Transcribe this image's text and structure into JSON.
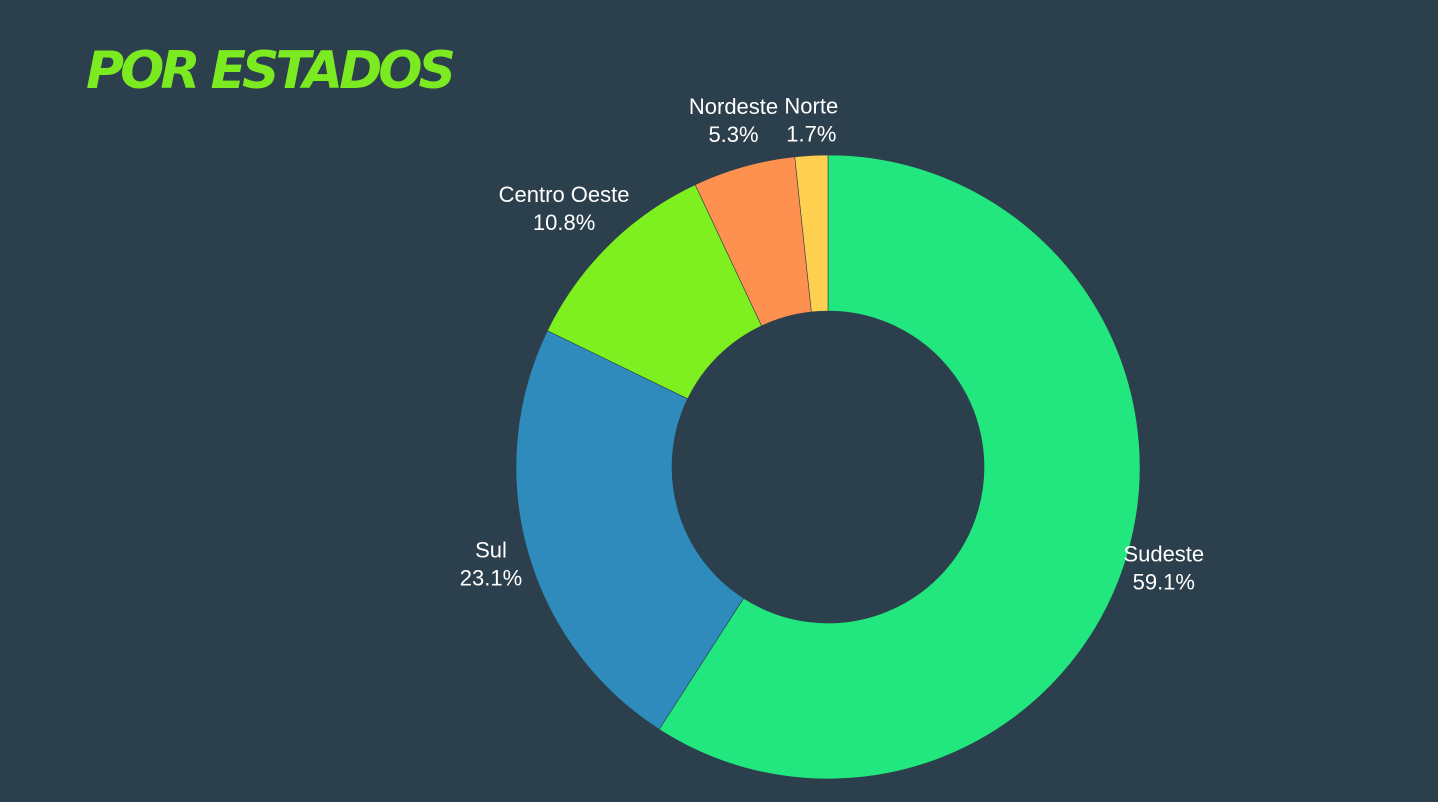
{
  "title": "POR ESTADOS",
  "chart_data": {
    "type": "pie",
    "donut": true,
    "categories": [
      "Sudeste",
      "Sul",
      "Centro Oeste",
      "Nordeste",
      "Norte"
    ],
    "values": [
      59.1,
      23.1,
      10.8,
      5.3,
      1.7
    ],
    "value_labels": [
      "59.1%",
      "23.1%",
      "10.8%",
      "5.3%",
      "1.7%"
    ],
    "colors": [
      "#22e67e",
      "#2e8bbb",
      "#7ef01f",
      "#ff9150",
      "#ffd050"
    ],
    "start_angle_deg": 0,
    "direction": "clockwise",
    "legend": "none",
    "background_color": "#2c3f4c",
    "title_color": "#7bea21"
  }
}
